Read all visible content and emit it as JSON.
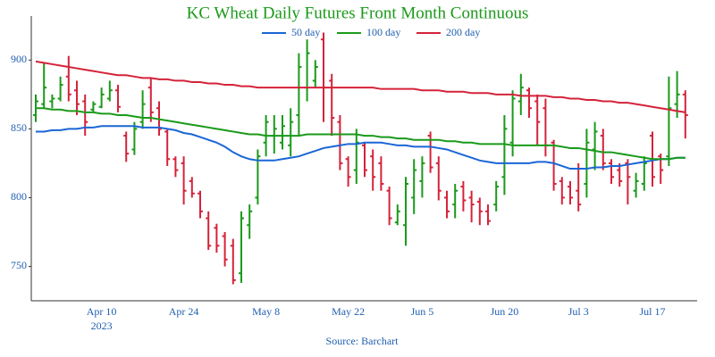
{
  "chart_data": {
    "type": "ohlc",
    "title": "KC Wheat Daily Futures Front Month Continuous",
    "source": "Source: Barchart",
    "year_label": "2023",
    "up_color": "#1a9a1a",
    "down_color": "#d4233a",
    "categories": [
      null,
      null,
      null,
      null,
      null,
      null,
      null,
      null,
      "Apr 10",
      null,
      null,
      null,
      null,
      null,
      null,
      null,
      null,
      null,
      "Apr 24",
      null,
      null,
      null,
      null,
      null,
      null,
      null,
      null,
      null,
      "May 8",
      null,
      null,
      null,
      null,
      null,
      null,
      null,
      null,
      null,
      "May 22",
      null,
      null,
      null,
      null,
      null,
      null,
      null,
      null,
      "Jun 5",
      null,
      null,
      null,
      null,
      null,
      null,
      null,
      null,
      null,
      "Jun 20",
      null,
      null,
      null,
      null,
      null,
      null,
      null,
      null,
      "Jul 3",
      null,
      null,
      null,
      null,
      null,
      null,
      null,
      null,
      "Jul 17",
      null,
      null,
      null,
      null
    ],
    "open": [
      860,
      868,
      870,
      872,
      888,
      878,
      870,
      864,
      866,
      872,
      878,
      845,
      835,
      855,
      880,
      865,
      848,
      828,
      825,
      812,
      803,
      785,
      778,
      772,
      765,
      745,
      780,
      800,
      840,
      845,
      840,
      838,
      860,
      880,
      885,
      915,
      885,
      855,
      828,
      820,
      838,
      830,
      825,
      805,
      782,
      780,
      800,
      812,
      845,
      825,
      800,
      795,
      808,
      800,
      797,
      790,
      795,
      815,
      840,
      870,
      878,
      870,
      865,
      840,
      812,
      808,
      805,
      810,
      835,
      845,
      825,
      820,
      825,
      805,
      810,
      845,
      830,
      830,
      868,
      875
    ],
    "high": [
      875,
      898,
      875,
      888,
      903,
      885,
      875,
      870,
      880,
      885,
      882,
      848,
      855,
      878,
      887,
      870,
      850,
      830,
      830,
      815,
      805,
      790,
      781,
      775,
      770,
      790,
      795,
      835,
      860,
      860,
      860,
      865,
      905,
      915,
      900,
      920,
      890,
      860,
      830,
      850,
      840,
      835,
      830,
      808,
      795,
      815,
      828,
      830,
      848,
      830,
      805,
      810,
      812,
      805,
      800,
      795,
      812,
      860,
      878,
      890,
      880,
      875,
      872,
      842,
      815,
      812,
      825,
      850,
      855,
      850,
      828,
      825,
      828,
      818,
      830,
      848,
      832,
      888,
      892,
      878
    ],
    "low": [
      855,
      865,
      865,
      870,
      870,
      860,
      845,
      862,
      865,
      870,
      862,
      826,
      831,
      850,
      855,
      845,
      823,
      815,
      795,
      800,
      785,
      762,
      760,
      750,
      737,
      738,
      770,
      795,
      830,
      832,
      835,
      830,
      845,
      870,
      880,
      855,
      845,
      820,
      808,
      810,
      815,
      805,
      805,
      780,
      780,
      765,
      788,
      800,
      818,
      798,
      785,
      785,
      790,
      782,
      780,
      780,
      790,
      802,
      830,
      860,
      858,
      838,
      830,
      805,
      795,
      795,
      790,
      800,
      820,
      820,
      810,
      808,
      795,
      800,
      805,
      808,
      810,
      823,
      858,
      843
    ],
    "close": [
      870,
      880,
      872,
      882,
      875,
      868,
      855,
      868,
      875,
      878,
      866,
      832,
      850,
      868,
      862,
      850,
      828,
      820,
      805,
      803,
      790,
      765,
      765,
      755,
      740,
      785,
      790,
      830,
      855,
      850,
      852,
      855,
      895,
      905,
      895,
      880,
      858,
      825,
      815,
      840,
      820,
      815,
      810,
      785,
      790,
      810,
      820,
      825,
      822,
      805,
      790,
      805,
      798,
      795,
      790,
      783,
      808,
      850,
      872,
      880,
      865,
      855,
      838,
      810,
      800,
      800,
      795,
      840,
      848,
      825,
      815,
      812,
      815,
      812,
      825,
      815,
      820,
      865,
      875,
      860
    ],
    "series": [
      {
        "name": "50 day",
        "color": "#1a66d6",
        "values": [
          848,
          848,
          849,
          849,
          850,
          850,
          851,
          851,
          852,
          852,
          852,
          852,
          852,
          851,
          851,
          851,
          850,
          849,
          847,
          846,
          844,
          842,
          840,
          837,
          833,
          830,
          828,
          827,
          827,
          827,
          828,
          829,
          830,
          832,
          834,
          836,
          837,
          838,
          839,
          839,
          840,
          840,
          840,
          839,
          838,
          838,
          837,
          837,
          837,
          836,
          835,
          833,
          831,
          829,
          827,
          826,
          825,
          825,
          825,
          825,
          825,
          826,
          826,
          825,
          823,
          821,
          821,
          821,
          822,
          822,
          823,
          823,
          824,
          825,
          826,
          827,
          828,
          828,
          829,
          829
        ]
      },
      {
        "name": "100 day",
        "color": "#1a9a1a",
        "values": [
          865,
          865,
          864,
          864,
          863,
          863,
          862,
          862,
          861,
          861,
          860,
          860,
          859,
          858,
          858,
          857,
          856,
          855,
          854,
          853,
          852,
          851,
          850,
          849,
          848,
          847,
          846,
          846,
          845,
          845,
          845,
          845,
          845,
          846,
          846,
          846,
          846,
          846,
          846,
          846,
          845,
          845,
          844,
          844,
          843,
          843,
          842,
          842,
          842,
          842,
          841,
          841,
          840,
          840,
          839,
          839,
          839,
          839,
          838,
          838,
          838,
          838,
          838,
          838,
          837,
          836,
          836,
          835,
          834,
          833,
          833,
          832,
          831,
          830,
          829,
          828,
          828,
          828,
          829,
          829
        ]
      },
      {
        "name": "200 day",
        "color": "#d4233a",
        "values": [
          899,
          898,
          897,
          896,
          895,
          894,
          893,
          892,
          891,
          890,
          889,
          889,
          888,
          887,
          887,
          886,
          886,
          885,
          885,
          884,
          884,
          883,
          883,
          882,
          882,
          881,
          881,
          880,
          880,
          880,
          880,
          880,
          880,
          880,
          880,
          880,
          880,
          880,
          880,
          880,
          880,
          880,
          879,
          879,
          879,
          879,
          879,
          878,
          878,
          878,
          877,
          877,
          877,
          876,
          876,
          876,
          875,
          875,
          875,
          874,
          874,
          874,
          874,
          873,
          873,
          872,
          872,
          871,
          871,
          870,
          870,
          869,
          869,
          868,
          867,
          866,
          865,
          864,
          863,
          862
        ]
      }
    ],
    "ylim": [
      725,
      932
    ],
    "yticks": [
      750,
      800,
      850,
      900
    ]
  }
}
